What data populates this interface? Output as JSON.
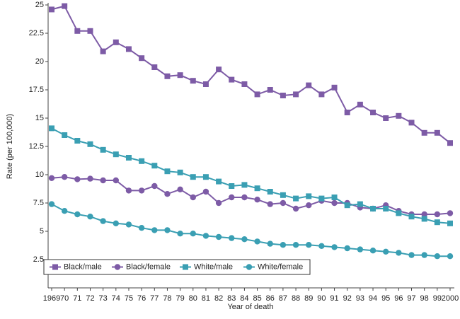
{
  "chart_data": {
    "type": "line",
    "x_label": "Year of death",
    "y_label": "Rate (per 100,000)",
    "categories": [
      "1969",
      "70",
      "71",
      "72",
      "73",
      "74",
      "75",
      "76",
      "77",
      "78",
      "79",
      "80",
      "81",
      "82",
      "83",
      "84",
      "85",
      "86",
      "87",
      "88",
      "89",
      "90",
      "91",
      "92",
      "93",
      "94",
      "95",
      "96",
      "97",
      "98",
      "99",
      "2000"
    ],
    "ylim": [
      0,
      25
    ],
    "yticks": [
      2.5,
      5,
      7.5,
      10,
      12.5,
      15,
      17.5,
      20,
      22.5,
      25
    ],
    "grid": false,
    "legend": "lower left",
    "series": [
      {
        "name": "Black/male",
        "color": "#7d5ba6",
        "marker": "square",
        "values": [
          24.6,
          24.9,
          22.7,
          22.7,
          20.9,
          21.7,
          21.1,
          20.3,
          19.5,
          18.7,
          18.8,
          18.3,
          18.0,
          19.3,
          18.4,
          18.0,
          17.1,
          17.5,
          17.0,
          17.1,
          17.9,
          17.1,
          17.7,
          15.5,
          16.2,
          15.5,
          15.0,
          15.2,
          14.6,
          13.7,
          13.7,
          12.8
        ]
      },
      {
        "name": "Black/female",
        "color": "#7d5ba6",
        "marker": "circle",
        "values": [
          9.7,
          9.8,
          9.6,
          9.65,
          9.5,
          9.5,
          8.6,
          8.6,
          9.0,
          8.3,
          8.7,
          8.0,
          8.5,
          7.5,
          8.0,
          8.0,
          7.8,
          7.4,
          7.5,
          7.0,
          7.3,
          7.7,
          7.5,
          7.5,
          7.1,
          7.0,
          7.3,
          6.8,
          6.5,
          6.5,
          6.5,
          6.6
        ]
      },
      {
        "name": "White/male",
        "color": "#3a9fb3",
        "marker": "square",
        "values": [
          14.1,
          13.5,
          13.0,
          12.7,
          12.2,
          11.8,
          11.5,
          11.2,
          10.8,
          10.3,
          10.2,
          9.8,
          9.8,
          9.4,
          9.0,
          9.1,
          8.8,
          8.5,
          8.2,
          7.9,
          8.1,
          7.9,
          8.0,
          7.3,
          7.4,
          7.0,
          7.0,
          6.6,
          6.3,
          6.1,
          5.8,
          5.7
        ]
      },
      {
        "name": "White/female",
        "color": "#3a9fb3",
        "marker": "circle",
        "values": [
          7.4,
          6.8,
          6.5,
          6.3,
          5.9,
          5.7,
          5.6,
          5.3,
          5.1,
          5.1,
          4.8,
          4.8,
          4.6,
          4.5,
          4.4,
          4.3,
          4.1,
          3.9,
          3.8,
          3.8,
          3.8,
          3.7,
          3.6,
          3.5,
          3.4,
          3.3,
          3.2,
          3.1,
          2.9,
          2.9,
          2.8,
          2.8
        ]
      }
    ]
  }
}
